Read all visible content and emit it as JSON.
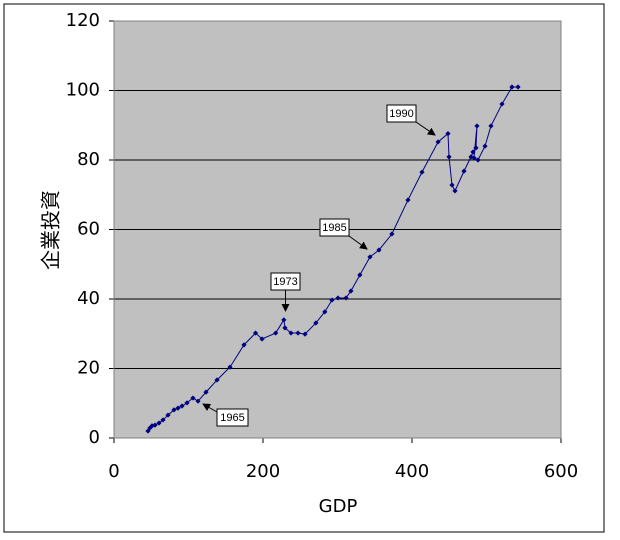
{
  "chart_data": {
    "type": "line",
    "x_label": "GDP",
    "y_label": "企業投資",
    "xlim": [
      0,
      600
    ],
    "ylim": [
      0,
      120
    ],
    "xticks": [
      0,
      200,
      400,
      600
    ],
    "yticks": [
      0,
      20,
      40,
      60,
      80,
      100,
      120
    ],
    "grid": true,
    "plot_background": "#c0c0c0",
    "series": [
      {
        "color": "#000080",
        "x": [
          45.6,
          48.3,
          51.0,
          55.0,
          60.4,
          65.8,
          72.5,
          80.5,
          85.9,
          91.3,
          98.0,
          106.0,
          112.8,
          123.5,
          138.3,
          155.7,
          174.5,
          190.0,
          198.7,
          217.0,
          228.0,
          229.5,
          237.6,
          247.0,
          256.4,
          271.0,
          283.0,
          292.6,
          300.7,
          311.4,
          318.0,
          330.0,
          343.6,
          355.7,
          373.0,
          394.6,
          413.4,
          435.0,
          448.3,
          449.7,
          453.7,
          457.7,
          469.8,
          479.2,
          481.9,
          485.9,
          487.2,
          483.2,
          488.6,
          498.0,
          506.0,
          520.8,
          534.2,
          542.3
        ],
        "values": [
          2.0,
          2.9,
          3.5,
          3.7,
          4.3,
          5.2,
          6.6,
          8.1,
          8.6,
          9.2,
          10.1,
          11.5,
          10.6,
          13.2,
          16.7,
          20.4,
          26.8,
          30.2,
          28.5,
          30.2,
          34.0,
          31.7,
          30.2,
          30.2,
          29.9,
          33.1,
          36.3,
          39.7,
          40.3,
          40.3,
          42.3,
          46.9,
          52.1,
          54.1,
          58.7,
          68.5,
          76.5,
          85.2,
          87.6,
          80.9,
          72.8,
          71.1,
          76.8,
          80.9,
          82.3,
          83.5,
          89.8,
          80.6,
          80.0,
          84.0,
          89.8,
          96.1,
          101.0,
          101.0
        ]
      }
    ],
    "annotations": [
      "1990",
      "1985",
      "1973",
      "1965"
    ]
  }
}
